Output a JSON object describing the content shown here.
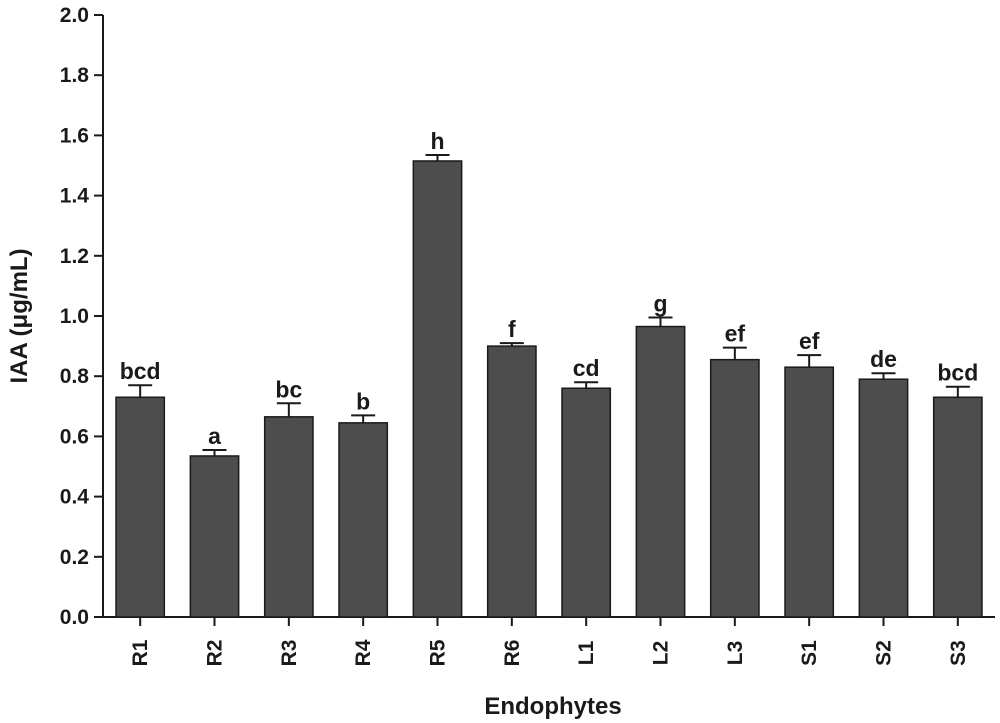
{
  "chart_data": {
    "type": "bar",
    "xlabel": "Endophytes",
    "ylabel": "IAA (μg/mL)",
    "ylim": [
      0,
      2.0
    ],
    "yticks": [
      "0.0",
      "0.2",
      "0.4",
      "0.6",
      "0.8",
      "1.0",
      "1.2",
      "1.4",
      "1.6",
      "1.8",
      "2.0"
    ],
    "categories": [
      "R1",
      "R2",
      "R3",
      "R4",
      "R5",
      "R6",
      "L1",
      "L2",
      "L3",
      "S1",
      "S2",
      "S3"
    ],
    "values": [
      0.73,
      0.535,
      0.665,
      0.645,
      1.515,
      0.9,
      0.76,
      0.965,
      0.855,
      0.83,
      0.79,
      0.73
    ],
    "errors": [
      0.04,
      0.02,
      0.045,
      0.025,
      0.02,
      0.01,
      0.02,
      0.03,
      0.04,
      0.04,
      0.02,
      0.035
    ],
    "significance": [
      "bcd",
      "a",
      "bc",
      "b",
      "h",
      "f",
      "cd",
      "g",
      "ef",
      "ef",
      "de",
      "bcd"
    ],
    "bar_color": "#4d4d4d",
    "grid": false,
    "legend": "none"
  }
}
